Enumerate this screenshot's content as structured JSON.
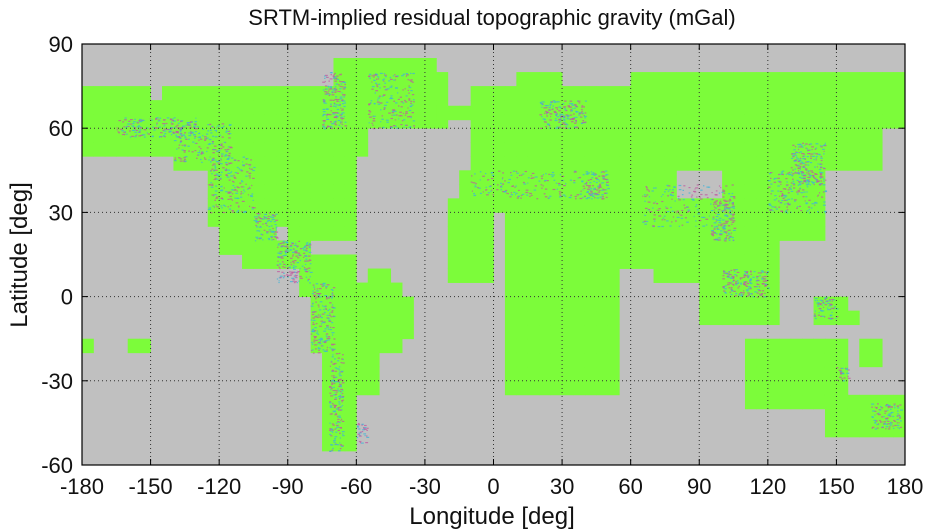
{
  "chart_data": {
    "type": "heatmap",
    "title": "SRTM-implied residual topographic gravity (mGal)",
    "xlabel": "Longitude [deg]",
    "ylabel": "Latitude [deg]",
    "xlim": [
      -180,
      180
    ],
    "ylim": [
      -60,
      90
    ],
    "xticks": [
      -180,
      -150,
      -120,
      -90,
      -60,
      -30,
      0,
      30,
      60,
      90,
      120,
      150,
      180
    ],
    "yticks": [
      -60,
      -30,
      0,
      30,
      60,
      90
    ],
    "grid": true,
    "colors": {
      "background": "#c0c0c0",
      "data_coverage": "#7cfc3a",
      "residual_positive": "#c05aa0",
      "residual_negative": "#3fb4d8",
      "grid": "#333333"
    },
    "coverage_cell_deg": 5,
    "coverage_regions_lon_lat": [
      [
        -180,
        -165,
        50,
        75
      ],
      [
        -170,
        -150,
        55,
        72
      ],
      [
        -160,
        -140,
        55,
        70
      ],
      [
        -165,
        -130,
        50,
        60
      ],
      [
        -145,
        -55,
        50,
        72
      ],
      [
        -140,
        -60,
        45,
        55
      ],
      [
        -125,
        -75,
        25,
        50
      ],
      [
        -120,
        -95,
        15,
        30
      ],
      [
        -110,
        -80,
        10,
        20
      ],
      [
        -100,
        -60,
        30,
        48
      ],
      [
        -90,
        -60,
        20,
        30
      ],
      [
        -85,
        -60,
        0,
        12
      ],
      [
        -80,
        -40,
        -20,
        5
      ],
      [
        -75,
        -50,
        -35,
        -20
      ],
      [
        -75,
        -60,
        -55,
        -35
      ],
      [
        -80,
        -70,
        -20,
        -5
      ],
      [
        -60,
        -35,
        -15,
        0
      ],
      [
        -55,
        -45,
        5,
        10
      ],
      [
        -35,
        -25,
        65,
        75
      ],
      [
        -60,
        -20,
        60,
        80
      ],
      [
        -55,
        -25,
        80,
        85
      ],
      [
        -70,
        -55,
        75,
        82
      ],
      [
        -25,
        -10,
        63,
        67
      ],
      [
        -20,
        0,
        5,
        35
      ],
      [
        -15,
        50,
        30,
        45
      ],
      [
        -10,
        40,
        35,
        72
      ],
      [
        5,
        55,
        -35,
        30
      ],
      [
        30,
        50,
        -25,
        -10
      ],
      [
        40,
        50,
        -25,
        -12
      ],
      [
        10,
        30,
        60,
        80
      ],
      [
        40,
        170,
        45,
        75
      ],
      [
        60,
        180,
        60,
        78
      ],
      [
        35,
        80,
        10,
        45
      ],
      [
        70,
        100,
        5,
        35
      ],
      [
        90,
        125,
        -10,
        30
      ],
      [
        100,
        145,
        20,
        45
      ],
      [
        125,
        145,
        30,
        45
      ],
      [
        135,
        145,
        40,
        50
      ],
      [
        140,
        155,
        -10,
        0
      ],
      [
        110,
        155,
        -40,
        -15
      ],
      [
        145,
        180,
        -50,
        -35
      ],
      [
        165,
        180,
        -45,
        -35
      ],
      [
        -180,
        -175,
        -20,
        -15
      ],
      [
        -160,
        -150,
        -20,
        -15
      ],
      [
        160,
        170,
        -25,
        -15
      ],
      [
        150,
        160,
        -10,
        -5
      ],
      [
        -110,
        -100,
        15,
        25
      ],
      [
        -5,
        5,
        60,
        62
      ]
    ],
    "residual_features_lon_lat": [
      [
        -165,
        -130,
        57,
        64
      ],
      [
        -140,
        -115,
        48,
        62
      ],
      [
        -125,
        -105,
        30,
        50
      ],
      [
        -105,
        -95,
        20,
        30
      ],
      [
        -95,
        -80,
        5,
        20
      ],
      [
        -80,
        -70,
        -20,
        5
      ],
      [
        -72,
        -66,
        -55,
        -20
      ],
      [
        -60,
        -55,
        -52,
        -45
      ],
      [
        -75,
        -65,
        60,
        80
      ],
      [
        -55,
        -35,
        60,
        80
      ],
      [
        -10,
        45,
        35,
        45
      ],
      [
        20,
        40,
        60,
        70
      ],
      [
        40,
        50,
        35,
        45
      ],
      [
        65,
        105,
        25,
        40
      ],
      [
        95,
        105,
        20,
        35
      ],
      [
        100,
        120,
        0,
        10
      ],
      [
        120,
        145,
        30,
        45
      ],
      [
        130,
        145,
        40,
        55
      ],
      [
        140,
        150,
        -8,
        0
      ],
      [
        165,
        178,
        -47,
        -38
      ],
      [
        150,
        155,
        -30,
        -25
      ]
    ]
  }
}
